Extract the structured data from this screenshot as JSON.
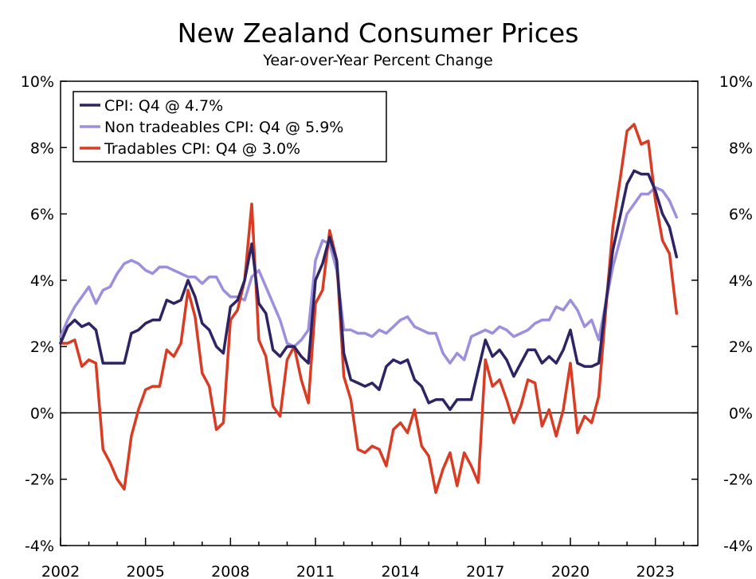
{
  "title": "New Zealand Consumer Prices",
  "subtitle": "Year-over-Year Percent Change",
  "colors": {
    "cpi": "#2e2464",
    "nontradables": "#9c8fde",
    "tradables": "#d93b23"
  },
  "chart_data": {
    "type": "line",
    "title": "New Zealand Consumer Prices",
    "subtitle": "Year-over-Year Percent Change",
    "x_ticks": [
      "2002",
      "2005",
      "2008",
      "2011",
      "2014",
      "2017",
      "2020",
      "2023"
    ],
    "x_tick_values": [
      2002,
      2005,
      2008,
      2011,
      2014,
      2017,
      2020,
      2023
    ],
    "xlim": [
      2002,
      2024.5
    ],
    "ylim": [
      -4,
      10
    ],
    "y_ticks_left": [
      "10%",
      "8%",
      "6%",
      "4%",
      "2%",
      "0%",
      "-2%",
      "-4%"
    ],
    "y_ticks_right": [
      "10%",
      "8%",
      "6%",
      "4%",
      "2%",
      "0%",
      "-2%",
      "-4%"
    ],
    "y_tick_values": [
      10,
      8,
      6,
      4,
      2,
      0,
      -2,
      -4
    ],
    "zero_line": true,
    "grid": false,
    "legend_position": "top-left",
    "x_start_year": 2002,
    "x_step": 0.25,
    "series": [
      {
        "name": "CPI: Q4 @ 4.7%",
        "key": "cpi",
        "values": [
          2.1,
          2.6,
          2.8,
          2.6,
          2.7,
          2.5,
          1.5,
          1.5,
          1.5,
          1.5,
          2.4,
          2.5,
          2.7,
          2.8,
          2.8,
          3.4,
          3.3,
          3.4,
          4.0,
          3.5,
          2.7,
          2.5,
          2.0,
          1.8,
          3.2,
          3.4,
          4.0,
          5.1,
          3.3,
          3.0,
          1.9,
          1.7,
          2.0,
          2.0,
          1.7,
          1.5,
          4.0,
          4.5,
          5.3,
          4.6,
          1.8,
          1.0,
          0.9,
          0.8,
          0.9,
          0.7,
          1.4,
          1.6,
          1.5,
          1.6,
          1.0,
          0.8,
          0.3,
          0.4,
          0.4,
          0.1,
          0.4,
          0.4,
          0.4,
          1.3,
          2.2,
          1.7,
          1.9,
          1.6,
          1.1,
          1.5,
          1.9,
          1.9,
          1.5,
          1.7,
          1.5,
          1.9,
          2.5,
          1.5,
          1.4,
          1.4,
          1.5,
          3.3,
          4.9,
          5.9,
          6.9,
          7.3,
          7.2,
          7.2,
          6.7,
          6.0,
          5.6,
          4.7
        ]
      },
      {
        "name": "Non tradeables CPI: Q4 @ 5.9%",
        "key": "nontradables",
        "values": [
          2.3,
          2.8,
          3.2,
          3.5,
          3.8,
          3.3,
          3.7,
          3.8,
          4.2,
          4.5,
          4.6,
          4.5,
          4.3,
          4.2,
          4.4,
          4.4,
          4.3,
          4.2,
          4.1,
          4.1,
          3.9,
          4.1,
          4.1,
          3.7,
          3.5,
          3.5,
          3.4,
          4.1,
          4.3,
          3.8,
          3.3,
          2.8,
          2.1,
          2.0,
          2.2,
          2.5,
          4.6,
          5.2,
          5.1,
          4.3,
          2.5,
          2.5,
          2.4,
          2.4,
          2.3,
          2.5,
          2.4,
          2.6,
          2.8,
          2.9,
          2.6,
          2.5,
          2.4,
          2.4,
          1.8,
          1.5,
          1.8,
          1.6,
          2.3,
          2.4,
          2.5,
          2.4,
          2.6,
          2.5,
          2.3,
          2.4,
          2.5,
          2.7,
          2.8,
          2.8,
          3.2,
          3.1,
          3.4,
          3.1,
          2.6,
          2.8,
          2.2,
          3.3,
          4.4,
          5.2,
          6.0,
          6.3,
          6.6,
          6.6,
          6.8,
          6.7,
          6.4,
          5.9
        ]
      },
      {
        "name": "Tradables CPI: Q4 @ 3.0%",
        "key": "tradables",
        "values": [
          2.1,
          2.1,
          2.2,
          1.4,
          1.6,
          1.5,
          -1.1,
          -1.5,
          -2.0,
          -2.3,
          -0.7,
          0.1,
          0.7,
          0.8,
          0.8,
          1.9,
          1.7,
          2.1,
          3.7,
          2.9,
          1.2,
          0.8,
          -0.5,
          -0.3,
          2.8,
          3.1,
          4.0,
          6.3,
          2.2,
          1.7,
          0.2,
          -0.1,
          1.6,
          2.0,
          1.0,
          0.3,
          3.3,
          3.7,
          5.5,
          4.6,
          1.1,
          0.4,
          -1.1,
          -1.2,
          -1.0,
          -1.1,
          -1.6,
          -0.5,
          -0.3,
          -0.6,
          0.1,
          -1.0,
          -1.3,
          -2.4,
          -1.7,
          -1.2,
          -2.2,
          -1.2,
          -1.6,
          -2.1,
          1.6,
          0.8,
          1.0,
          0.4,
          -0.3,
          0.2,
          1.0,
          0.9,
          -0.4,
          0.1,
          -0.7,
          0.1,
          1.5,
          -0.6,
          -0.1,
          -0.3,
          0.5,
          3.1,
          5.6,
          7.0,
          8.5,
          8.7,
          8.1,
          8.2,
          6.4,
          5.2,
          4.8,
          3.0
        ]
      }
    ]
  }
}
